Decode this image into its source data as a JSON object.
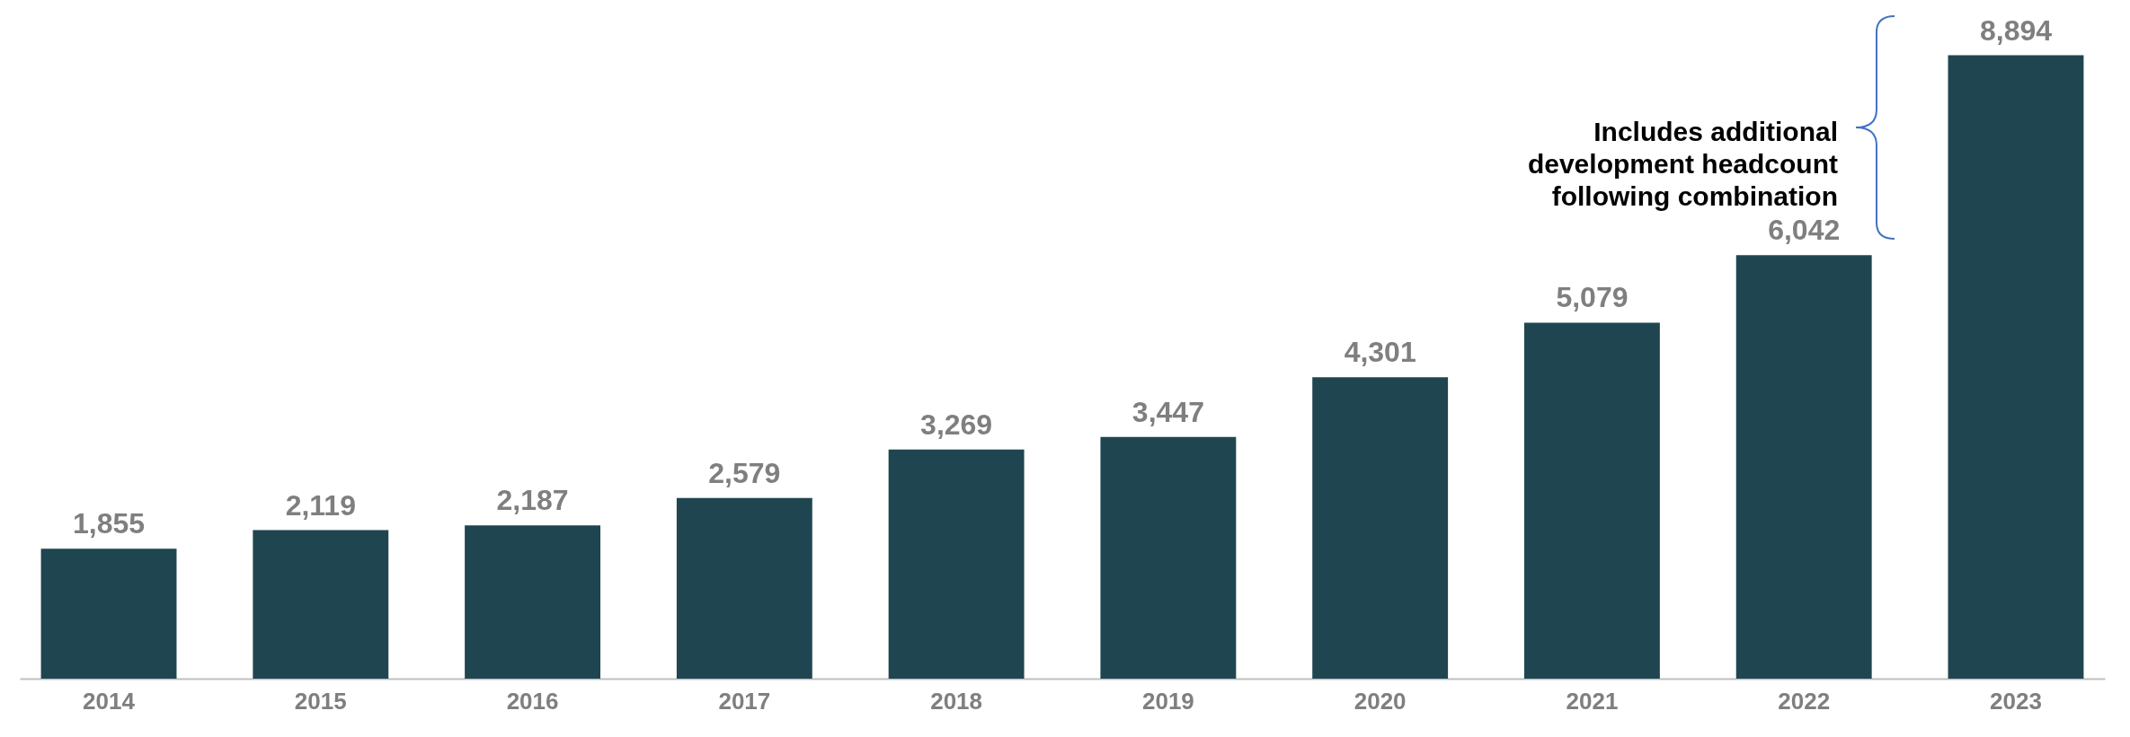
{
  "chart_data": {
    "type": "bar",
    "categories": [
      "2014",
      "2015",
      "2016",
      "2017",
      "2018",
      "2019",
      "2020",
      "2021",
      "2022",
      "2023"
    ],
    "values": [
      1855,
      2119,
      2187,
      2579,
      3269,
      3447,
      4301,
      5079,
      6042,
      8894
    ],
    "color": "#1f4650",
    "value_labels": [
      "1,855",
      "2,119",
      "2,187",
      "2,579",
      "3,269",
      "3,447",
      "4,301",
      "5,079",
      "6,042",
      "8,894"
    ],
    "annotations": [
      "Includes additional\ndevelopment headcount\nfollowing combination"
    ]
  }
}
